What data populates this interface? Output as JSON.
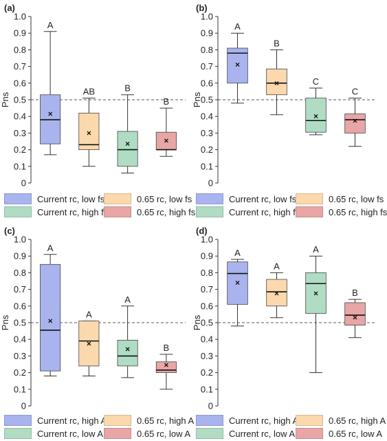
{
  "colors": {
    "blue": "#a9b4ee",
    "orange": "#fcd9ad",
    "green": "#b0dcc4",
    "red": "#e8a6a6"
  },
  "chart_data": [
    {
      "type": "box",
      "panel": "(a)",
      "ylabel": "Pns",
      "ylim": [
        0,
        1.0
      ],
      "ticks": [
        "0",
        "0.1",
        "0.2",
        "0.3",
        "0.4",
        "0.5",
        "0.6",
        "0.7",
        "0.8",
        "0.9",
        "1.0"
      ],
      "reference_line": 0.5,
      "boxes": [
        {
          "color": "blue",
          "min": 0.17,
          "q1": 0.235,
          "median": 0.38,
          "q3": 0.53,
          "max": 0.91,
          "mean": 0.415,
          "letter": "A"
        },
        {
          "color": "orange",
          "min": 0.1,
          "q1": 0.2,
          "median": 0.23,
          "q3": 0.42,
          "max": 0.51,
          "mean": 0.3,
          "letter": "AB"
        },
        {
          "color": "green",
          "min": 0.06,
          "q1": 0.1,
          "median": 0.2,
          "q3": 0.31,
          "max": 0.53,
          "mean": 0.235,
          "letter": "B"
        },
        {
          "color": "red",
          "min": 0.16,
          "q1": 0.2,
          "median": 0.2,
          "q3": 0.305,
          "max": 0.45,
          "mean": 0.255,
          "letter": "B"
        }
      ],
      "legend": [
        {
          "color": "blue",
          "label": "Current rc, low fs"
        },
        {
          "color": "orange",
          "label": "0.65 rc, low fs"
        },
        {
          "color": "green",
          "label": "Current rc, high fs"
        },
        {
          "color": "red",
          "label": "0.65 rc, high fs"
        }
      ]
    },
    {
      "type": "box",
      "panel": "(b)",
      "ylabel": "Pns",
      "ylim": [
        0,
        1.0
      ],
      "ticks": [
        "0",
        "0.1",
        "0.2",
        "0.3",
        "0.4",
        "0.5",
        "0.6",
        "0.7",
        "0.8",
        "0.9",
        "1.0"
      ],
      "reference_line": 0.5,
      "boxes": [
        {
          "color": "blue",
          "min": 0.48,
          "q1": 0.6,
          "median": 0.78,
          "q3": 0.81,
          "max": 0.9,
          "mean": 0.71,
          "letter": "A"
        },
        {
          "color": "orange",
          "min": 0.41,
          "q1": 0.53,
          "median": 0.6,
          "q3": 0.685,
          "max": 0.8,
          "mean": 0.6,
          "letter": "B"
        },
        {
          "color": "green",
          "min": 0.29,
          "q1": 0.305,
          "median": 0.375,
          "q3": 0.51,
          "max": 0.57,
          "mean": 0.4,
          "letter": "C"
        },
        {
          "color": "red",
          "min": 0.22,
          "q1": 0.3,
          "median": 0.38,
          "q3": 0.415,
          "max": 0.51,
          "mean": 0.375,
          "letter": "C"
        }
      ],
      "legend": [
        {
          "color": "blue",
          "label": "Current rc, low fs"
        },
        {
          "color": "orange",
          "label": "0.65 rc, low fs"
        },
        {
          "color": "green",
          "label": "Current rc, high fs"
        },
        {
          "color": "red",
          "label": "0.65 rc, high fs"
        }
      ]
    },
    {
      "type": "box",
      "panel": "(c)",
      "ylabel": "Pns",
      "ylim": [
        0,
        1.0
      ],
      "ticks": [
        "0",
        "0.1",
        "0.2",
        "0.3",
        "0.4",
        "0.5",
        "0.6",
        "0.7",
        "0.8",
        "0.9",
        "1.0"
      ],
      "reference_line": 0.5,
      "boxes": [
        {
          "color": "blue",
          "min": 0.18,
          "q1": 0.21,
          "median": 0.455,
          "q3": 0.85,
          "max": 0.91,
          "mean": 0.51,
          "letter": "A"
        },
        {
          "color": "orange",
          "min": 0.18,
          "q1": 0.24,
          "median": 0.39,
          "q3": 0.51,
          "max": 0.51,
          "mean": 0.375,
          "letter": "A"
        },
        {
          "color": "green",
          "min": 0.17,
          "q1": 0.24,
          "median": 0.3,
          "q3": 0.395,
          "max": 0.6,
          "mean": 0.34,
          "letter": "A"
        },
        {
          "color": "red",
          "min": 0.1,
          "q1": 0.2,
          "median": 0.215,
          "q3": 0.265,
          "max": 0.31,
          "mean": 0.245,
          "letter": "B"
        }
      ],
      "legend": [
        {
          "color": "blue",
          "label": "Current rc, high A"
        },
        {
          "color": "orange",
          "label": "0.65 rc, high A"
        },
        {
          "color": "green",
          "label": "Current rc, low A"
        },
        {
          "color": "red",
          "label": "0.65 rc, low A"
        }
      ]
    },
    {
      "type": "box",
      "panel": "(d)",
      "ylabel": "Pns",
      "ylim": [
        0,
        1.0
      ],
      "ticks": [
        "0",
        "0.1",
        "0.2",
        "0.3",
        "0.4",
        "0.5",
        "0.6",
        "0.7",
        "0.8",
        "0.9",
        "1.0"
      ],
      "reference_line": 0.5,
      "boxes": [
        {
          "color": "blue",
          "min": 0.48,
          "q1": 0.61,
          "median": 0.795,
          "q3": 0.865,
          "max": 0.88,
          "mean": 0.74,
          "letter": "A"
        },
        {
          "color": "orange",
          "min": 0.53,
          "q1": 0.6,
          "median": 0.685,
          "q3": 0.76,
          "max": 0.8,
          "mean": 0.675,
          "letter": "A"
        },
        {
          "color": "green",
          "min": 0.2,
          "q1": 0.555,
          "median": 0.735,
          "q3": 0.8,
          "max": 0.9,
          "mean": 0.675,
          "letter": "A"
        },
        {
          "color": "red",
          "min": 0.41,
          "q1": 0.485,
          "median": 0.545,
          "q3": 0.62,
          "max": 0.64,
          "mean": 0.53,
          "letter": "B"
        }
      ],
      "legend": [
        {
          "color": "blue",
          "label": "Current rc, high A"
        },
        {
          "color": "orange",
          "label": "0.65 rc, high A"
        },
        {
          "color": "green",
          "label": "Current rc, low A"
        },
        {
          "color": "red",
          "label": "0.65 rc, low A"
        }
      ]
    }
  ]
}
